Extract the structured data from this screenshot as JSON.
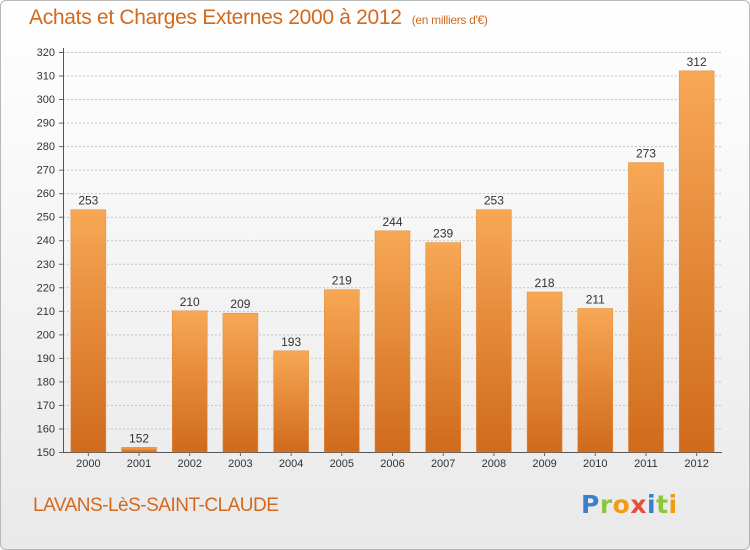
{
  "header": {
    "title": "Achats et Charges Externes 2000 à 2012",
    "unit": "(en milliers d'€)"
  },
  "footer": {
    "commune": "LAVANS-LèS-SAINT-CLAUDE"
  },
  "logo": {
    "letters": [
      "P",
      "r",
      "o",
      "x",
      "i",
      "t",
      "i"
    ],
    "colors": [
      "#3a7fc8",
      "#8cc63f",
      "#f39c12",
      "#e74c3c",
      "#3a7fc8",
      "#8cc63f",
      "#f39c12"
    ]
  },
  "colors": {
    "bar_light": "#f7a855",
    "bar_dark": "#d06a1c",
    "title": "#d2691e"
  },
  "chart_data": {
    "type": "bar",
    "title": "Achats et Charges Externes 2000 à 2012",
    "categories": [
      "2000",
      "2001",
      "2002",
      "2003",
      "2004",
      "2005",
      "2006",
      "2007",
      "2008",
      "2009",
      "2010",
      "2011",
      "2012"
    ],
    "values": [
      253,
      152,
      210,
      209,
      193,
      219,
      244,
      239,
      253,
      218,
      211,
      273,
      312
    ],
    "ylim": [
      150,
      320
    ],
    "yticks": [
      150,
      160,
      170,
      180,
      190,
      200,
      210,
      220,
      230,
      240,
      250,
      260,
      270,
      280,
      290,
      300,
      310,
      320
    ],
    "grid": true,
    "xlabel": "",
    "ylabel": ""
  }
}
